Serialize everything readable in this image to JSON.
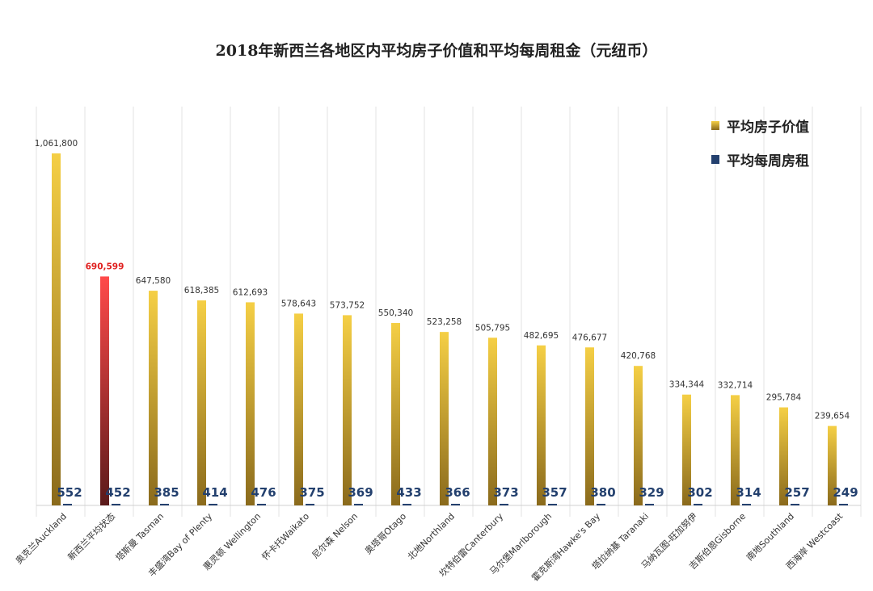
{
  "chart_data": {
    "type": "bar",
    "title": "2018年新西兰各地区内平均房子价值和平均每周租金（元纽币）",
    "categories": [
      "奥克兰Auckland",
      "新西兰平均状态",
      "塔斯曼 Tasman",
      "丰盛湾Bay of Plenty",
      "惠灵顿 Wellington",
      "怀卡托Waikato",
      "尼尔森 Nelson",
      "奥塔哥Otago",
      "北地Northland",
      "坎特伯雷Canterbury",
      "马尔堡Marlborough",
      "霍克斯湾Hawke's Bay",
      "塔拉纳基 Taranaki",
      "马纳瓦图-旺加努伊",
      "吉斯伯恩Gisborne",
      "南地Southland",
      "西海岸 Westcoast"
    ],
    "series": [
      {
        "name": "平均房子价值",
        "values": [
          1061800,
          690599,
          647580,
          618385,
          612693,
          578643,
          573752,
          550340,
          523258,
          505795,
          482695,
          476677,
          420768,
          334344,
          332714,
          295784,
          239654
        ],
        "labels": [
          "1,061,800",
          "690,599",
          "647,580",
          "618,385",
          "612,693",
          "578,643",
          "573,752",
          "550,340",
          "523,258",
          "505,795",
          "482,695",
          "476,677",
          "420,768",
          "334,344",
          "332,714",
          "295,784",
          "239,654"
        ],
        "color_top": "#f5cf45",
        "color_bottom": "#8a6a1c",
        "highlight_index": 1,
        "highlight_color_top": "#ff4a4a",
        "highlight_color_bottom": "#5a1a1a",
        "highlight_label_color": "#e0201f"
      },
      {
        "name": "平均每周房租",
        "values": [
          552,
          452,
          385,
          414,
          476,
          375,
          369,
          433,
          366,
          373,
          357,
          380,
          329,
          302,
          314,
          257,
          249
        ],
        "labels": [
          "552",
          "452",
          "385",
          "414",
          "476",
          "375",
          "369",
          "433",
          "366",
          "373",
          "357",
          "380",
          "329",
          "302",
          "314",
          "257",
          "249"
        ],
        "color": "#23406e"
      }
    ],
    "ylim": [
      0,
      1061800
    ],
    "xlabel": "",
    "ylabel": "",
    "legend_position": "top-right",
    "grid": "vertical category separators"
  }
}
